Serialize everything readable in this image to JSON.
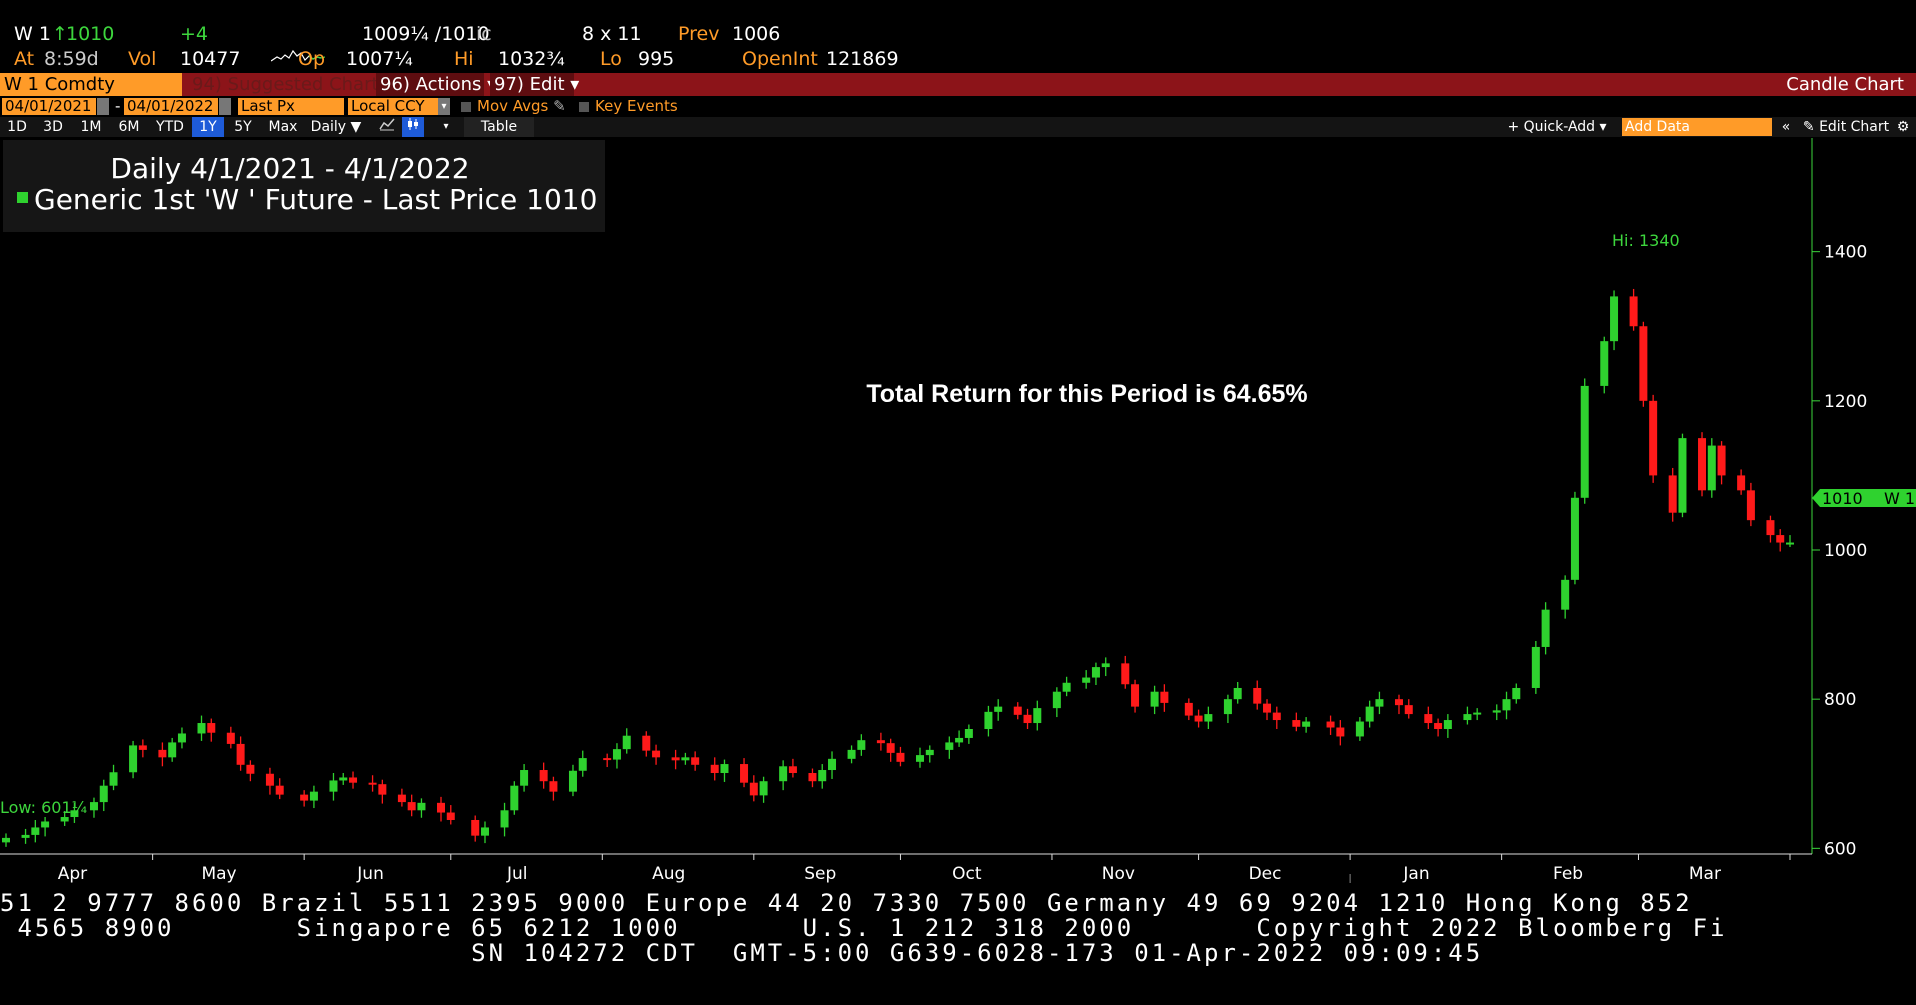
{
  "quote": {
    "ticker": "W 1",
    "last": "1010",
    "change": "+4",
    "bid_ask": "1009¼ /1010",
    "bid_ask_suffix": "ic",
    "size": "8 x 11",
    "prev_label": "Prev",
    "prev": "1006",
    "at_label": "At",
    "time": "8:59d",
    "vol_label": "Vol",
    "vol": "10477",
    "op_label": "Op",
    "op": "1007¼",
    "hi_label": "Hi",
    "hi": "1032¾",
    "lo_label": "Lo",
    "lo": "995",
    "oi_label": "OpenInt",
    "oi": "121869"
  },
  "titlebar": {
    "security": "W 1 Comdty",
    "suggested": "94) Suggested Charts",
    "actions": "96) Actions ▾",
    "edit": "97) Edit ▾",
    "chart_type": "Candle Chart"
  },
  "settings": {
    "start_date": "04/01/2021",
    "end_date": "04/01/2022",
    "field": "Last Px",
    "currency": "Local CCY",
    "mov_avgs": "Mov Avgs",
    "key_events": "Key Events"
  },
  "toolbar": {
    "periods": [
      "1D",
      "3D",
      "1M",
      "6M",
      "YTD",
      "1Y",
      "5Y",
      "Max"
    ],
    "selected_period": "1Y",
    "frequency": "Daily ▼",
    "table": "Table",
    "quick_add": "+ Quick-Add ▾",
    "add_data_placeholder": "Add Data",
    "collapse": "«",
    "edit_chart": "✎ Edit Chart",
    "settings_icon": "gear-icon"
  },
  "legend": {
    "line1": "Daily 4/1/2021 - 4/1/2022",
    "line2": "Generic 1st 'W ' Future - Last Price 1010"
  },
  "annotation": "Total Return for this Period is 64.65%",
  "hi_label": "Hi: 1340",
  "low_label": "Low: 601¼",
  "last_tag": "1010",
  "last_tag_name": "W 1",
  "colors": {
    "up": "#2fd22f",
    "down": "#ff1a1a",
    "axis": "#3dd63d",
    "title_bar": "#8c1419",
    "accent": "#ff9b28"
  },
  "chart_data": {
    "type": "candlestick",
    "title": "Daily 4/1/2021 - 4/1/2022",
    "series_name": "Generic 1st 'W ' Future - Last Price",
    "ylim": [
      520,
      1480
    ],
    "yticks": [
      600,
      800,
      1000,
      1200,
      1400
    ],
    "x_months": [
      "Apr",
      "May",
      "Jun",
      "Jul",
      "Aug",
      "Sep",
      "Oct",
      "Nov",
      "Dec",
      "Jan",
      "Feb",
      "Mar"
    ],
    "x_years": [
      "2021",
      "2022"
    ],
    "x_start": "2021-04-01",
    "x_end": "2022-04-01",
    "closes": [
      [
        "2021-04-01",
        614
      ],
      [
        "2021-04-05",
        618
      ],
      [
        "2021-04-07",
        628
      ],
      [
        "2021-04-09",
        636
      ],
      [
        "2021-04-13",
        642
      ],
      [
        "2021-04-15",
        651
      ],
      [
        "2021-04-19",
        662
      ],
      [
        "2021-04-21",
        684
      ],
      [
        "2021-04-23",
        702
      ],
      [
        "2021-04-27",
        738
      ],
      [
        "2021-04-29",
        732
      ],
      [
        "2021-05-03",
        722
      ],
      [
        "2021-05-05",
        742
      ],
      [
        "2021-05-07",
        754
      ],
      [
        "2021-05-11",
        768
      ],
      [
        "2021-05-13",
        755
      ],
      [
        "2021-05-17",
        740
      ],
      [
        "2021-05-19",
        712
      ],
      [
        "2021-05-21",
        700
      ],
      [
        "2021-05-25",
        684
      ],
      [
        "2021-05-27",
        672
      ],
      [
        "2021-06-01",
        664
      ],
      [
        "2021-06-03",
        676
      ],
      [
        "2021-06-07",
        691
      ],
      [
        "2021-06-09",
        695
      ],
      [
        "2021-06-11",
        688
      ],
      [
        "2021-06-15",
        686
      ],
      [
        "2021-06-17",
        672
      ],
      [
        "2021-06-21",
        662
      ],
      [
        "2021-06-23",
        651
      ],
      [
        "2021-06-25",
        661
      ],
      [
        "2021-06-29",
        648
      ],
      [
        "2021-07-01",
        638
      ],
      [
        "2021-07-06",
        617
      ],
      [
        "2021-07-08",
        628
      ],
      [
        "2021-07-12",
        651
      ],
      [
        "2021-07-14",
        684
      ],
      [
        "2021-07-16",
        705
      ],
      [
        "2021-07-20",
        690
      ],
      [
        "2021-07-22",
        676
      ],
      [
        "2021-07-26",
        704
      ],
      [
        "2021-07-28",
        721
      ],
      [
        "2021-08-02",
        719
      ],
      [
        "2021-08-04",
        733
      ],
      [
        "2021-08-06",
        751
      ],
      [
        "2021-08-10",
        731
      ],
      [
        "2021-08-12",
        722
      ],
      [
        "2021-08-16",
        718
      ],
      [
        "2021-08-18",
        722
      ],
      [
        "2021-08-20",
        712
      ],
      [
        "2021-08-24",
        701
      ],
      [
        "2021-08-26",
        713
      ],
      [
        "2021-08-30",
        688
      ],
      [
        "2021-09-01",
        671
      ],
      [
        "2021-09-03",
        690
      ],
      [
        "2021-09-07",
        710
      ],
      [
        "2021-09-09",
        701
      ],
      [
        "2021-09-13",
        690
      ],
      [
        "2021-09-15",
        705
      ],
      [
        "2021-09-17",
        720
      ],
      [
        "2021-09-21",
        732
      ],
      [
        "2021-09-23",
        745
      ],
      [
        "2021-09-27",
        741
      ],
      [
        "2021-09-29",
        728
      ],
      [
        "2021-10-01",
        716
      ],
      [
        "2021-10-05",
        725
      ],
      [
        "2021-10-07",
        732
      ],
      [
        "2021-10-11",
        742
      ],
      [
        "2021-10-13",
        748
      ],
      [
        "2021-10-15",
        760
      ],
      [
        "2021-10-19",
        783
      ],
      [
        "2021-10-21",
        790
      ],
      [
        "2021-10-25",
        779
      ],
      [
        "2021-10-27",
        768
      ],
      [
        "2021-10-29",
        788
      ],
      [
        "2021-11-02",
        810
      ],
      [
        "2021-11-04",
        822
      ],
      [
        "2021-11-08",
        829
      ],
      [
        "2021-11-10",
        843
      ],
      [
        "2021-11-12",
        848
      ],
      [
        "2021-11-16",
        820
      ],
      [
        "2021-11-18",
        790
      ],
      [
        "2021-11-22",
        810
      ],
      [
        "2021-11-24",
        795
      ],
      [
        "2021-11-29",
        778
      ],
      [
        "2021-12-01",
        770
      ],
      [
        "2021-12-03",
        780
      ],
      [
        "2021-12-07",
        800
      ],
      [
        "2021-12-09",
        815
      ],
      [
        "2021-12-13",
        794
      ],
      [
        "2021-12-15",
        782
      ],
      [
        "2021-12-17",
        772
      ],
      [
        "2021-12-21",
        763
      ],
      [
        "2021-12-23",
        770
      ],
      [
        "2021-12-28",
        762
      ],
      [
        "2021-12-30",
        750
      ],
      [
        "2022-01-03",
        770
      ],
      [
        "2022-01-05",
        790
      ],
      [
        "2022-01-07",
        800
      ],
      [
        "2022-01-11",
        792
      ],
      [
        "2022-01-13",
        780
      ],
      [
        "2022-01-17",
        768
      ],
      [
        "2022-01-19",
        760
      ],
      [
        "2022-01-21",
        772
      ],
      [
        "2022-01-25",
        780
      ],
      [
        "2022-01-27",
        782
      ],
      [
        "2022-01-31",
        785
      ],
      [
        "2022-02-02",
        800
      ],
      [
        "2022-02-04",
        815
      ],
      [
        "2022-02-08",
        870
      ],
      [
        "2022-02-10",
        920
      ],
      [
        "2022-02-14",
        960
      ],
      [
        "2022-02-16",
        1070
      ],
      [
        "2022-02-18",
        1220
      ],
      [
        "2022-02-22",
        1280
      ],
      [
        "2022-02-24",
        1340
      ],
      [
        "2022-02-28",
        1300
      ],
      [
        "2022-03-02",
        1200
      ],
      [
        "2022-03-04",
        1100
      ],
      [
        "2022-03-08",
        1050
      ],
      [
        "2022-03-10",
        1150
      ],
      [
        "2022-03-14",
        1080
      ],
      [
        "2022-03-16",
        1140
      ],
      [
        "2022-03-18",
        1100
      ],
      [
        "2022-03-22",
        1080
      ],
      [
        "2022-03-24",
        1040
      ],
      [
        "2022-03-28",
        1020
      ],
      [
        "2022-03-30",
        1010
      ],
      [
        "2022-04-01",
        1010
      ]
    ]
  },
  "footer": {
    "line1": "51 2 9777 8600 Brazil 5511 2395 9000 Europe 44 20 7330 7500 Germany 49 69 9204 1210 Hong Kong 852",
    "line2": " 4565 8900       Singapore 65 6212 1000       U.S. 1 212 318 2000       Copyright 2022 Bloomberg Fi",
    "line3": "                           SN 104272 CDT  GMT-5:00 G639-6028-173 01-Apr-2022 09:09:45"
  }
}
